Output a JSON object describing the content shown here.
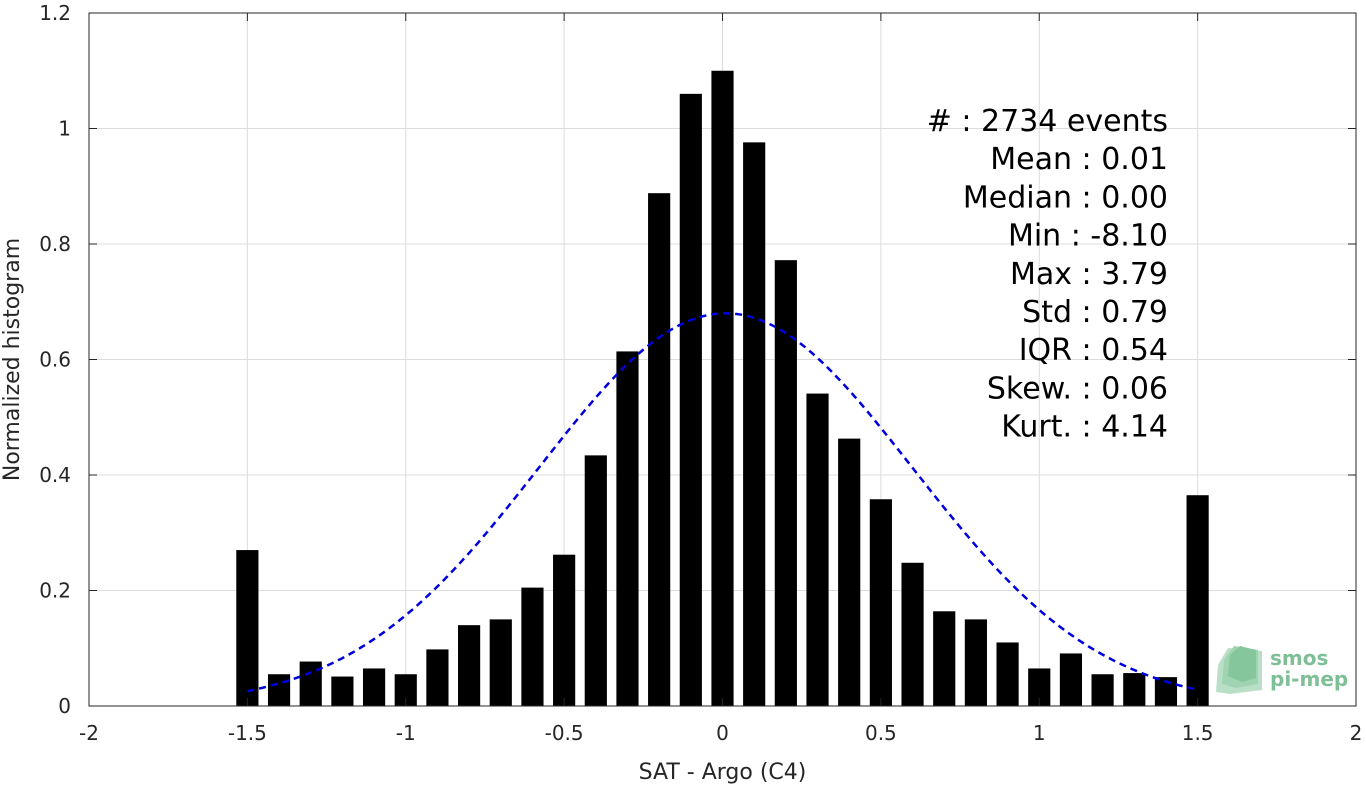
{
  "chart_data": {
    "type": "bar",
    "xlabel": "SAT - Argo (C4)",
    "ylabel": "Normalized histogram",
    "xlim": [
      -2,
      2
    ],
    "ylim": [
      0,
      1.2
    ],
    "xticks": [
      -2,
      -1.5,
      -1,
      -0.5,
      0,
      0.5,
      1,
      1.5,
      2
    ],
    "xtick_labels": [
      "-2",
      "-1.5",
      "-1",
      "-0.5",
      "0",
      "0.5",
      "1",
      "1.5",
      "2"
    ],
    "yticks": [
      0,
      0.2,
      0.4,
      0.6,
      0.8,
      1,
      1.2
    ],
    "ytick_labels": [
      "0",
      "0.2",
      "0.4",
      "0.6",
      "0.8",
      "1",
      "1.2"
    ],
    "grid": true,
    "bar_width": 0.07,
    "bar_color": "#000000",
    "x": [
      -1.5,
      -1.4,
      -1.3,
      -1.2,
      -1.1,
      -1.0,
      -0.9,
      -0.8,
      -0.7,
      -0.6,
      -0.5,
      -0.4,
      -0.3,
      -0.2,
      -0.1,
      0.0,
      0.1,
      0.2,
      0.3,
      0.4,
      0.5,
      0.6,
      0.7,
      0.8,
      0.9,
      1.0,
      1.1,
      1.2,
      1.3,
      1.4,
      1.5
    ],
    "values": [
      0.27,
      0.055,
      0.077,
      0.051,
      0.065,
      0.055,
      0.098,
      0.14,
      0.15,
      0.205,
      0.262,
      0.434,
      0.614,
      0.888,
      1.06,
      1.1,
      0.976,
      0.772,
      0.541,
      0.463,
      0.358,
      0.248,
      0.164,
      0.15,
      0.11,
      0.065,
      0.091,
      0.055,
      0.057,
      0.05,
      0.365
    ],
    "fit": {
      "type": "gaussian",
      "mean": 0.01,
      "std": 0.59,
      "peak": 0.68,
      "x_range": [
        -1.5,
        1.5
      ],
      "color": "#0000dd",
      "style": "dashed"
    },
    "stats": [
      "#  : 2734 events",
      "Mean : 0.01",
      "Median : 0.00",
      "Min : -8.10",
      "Max : 3.79",
      "Std : 0.79",
      "IQR : 0.54",
      "Skew. : 0.06",
      "Kurt. : 4.14"
    ],
    "logo": {
      "line1": "smos",
      "line2": "pi-mep",
      "color": "#7fbf98"
    }
  }
}
